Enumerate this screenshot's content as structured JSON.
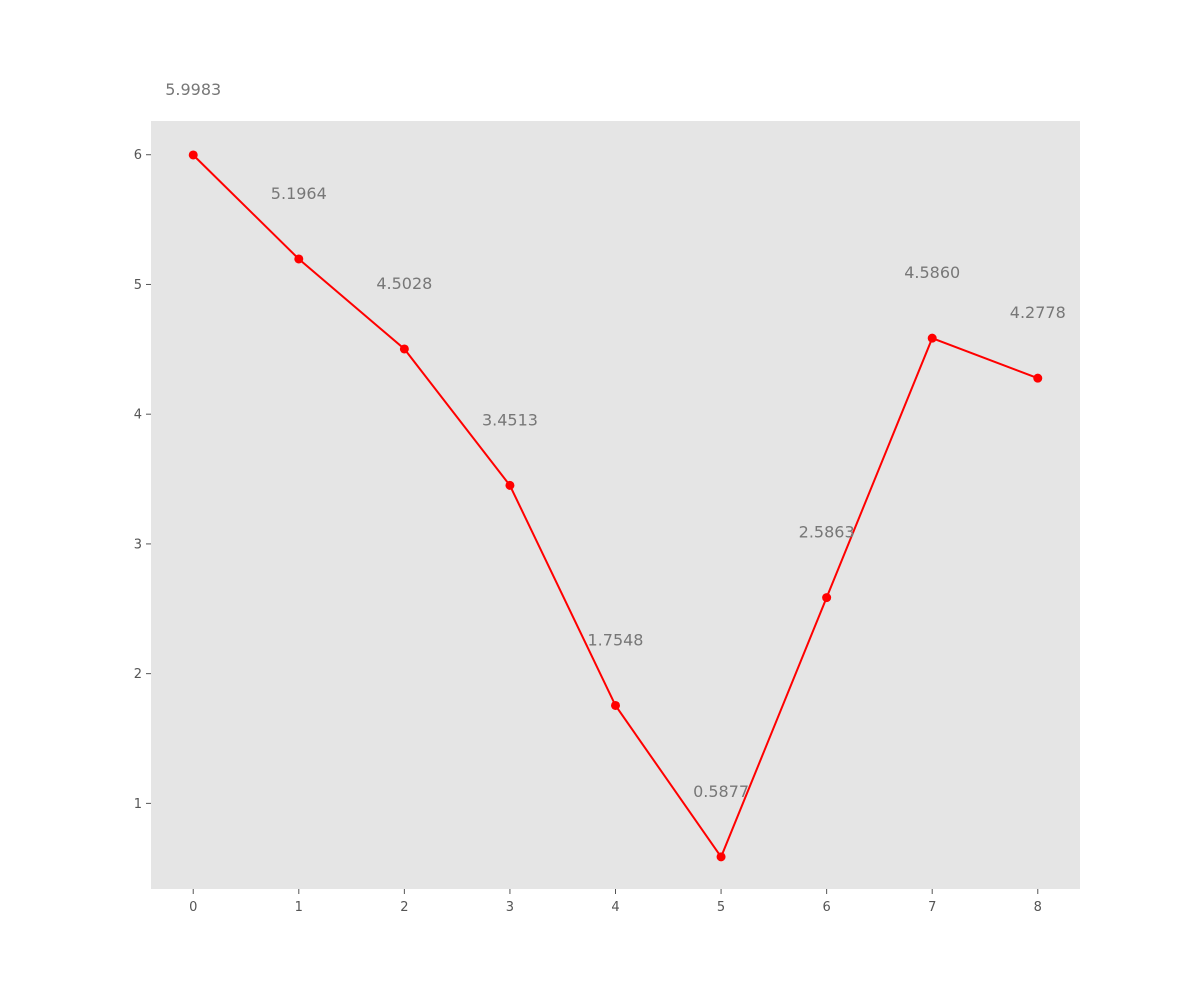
{
  "chart_data": {
    "type": "line",
    "title": "",
    "xlabel": "",
    "ylabel": "",
    "x": [
      0,
      1,
      2,
      3,
      4,
      5,
      6,
      7,
      8
    ],
    "series": [
      {
        "values": [
          5.9983,
          5.1964,
          4.5028,
          3.4513,
          1.7548,
          0.5877,
          2.5863,
          4.586,
          4.2778
        ],
        "labels": [
          "5.9983",
          "5.1964",
          "4.5028",
          "3.4513",
          "1.7548",
          "0.5877",
          "2.5863",
          "4.5860",
          "4.2778"
        ],
        "color": "#ff0000"
      }
    ],
    "xlim": [
      -0.4,
      8.4
    ],
    "ylim": [
      0.34,
      6.26
    ],
    "xticks": [
      0,
      1,
      2,
      3,
      4,
      5,
      6,
      7,
      8
    ],
    "yticks": [
      1,
      2,
      3,
      4,
      5,
      6
    ],
    "grid": false,
    "background": "#e5e5e5"
  }
}
